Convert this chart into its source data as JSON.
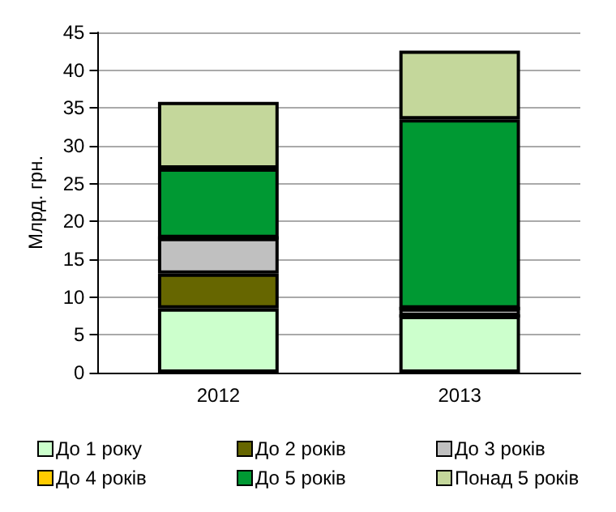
{
  "chart_data": {
    "type": "bar",
    "stacked": true,
    "ylabel": "Млрд. грн.",
    "categories": [
      "2012",
      "2013"
    ],
    "series": [
      {
        "name": "До 1 року",
        "color": "#ccffcc",
        "values": [
          8.5,
          7.5
        ]
      },
      {
        "name": "До 2 років",
        "color": "#666600",
        "values": [
          4.6,
          0
        ]
      },
      {
        "name": "До 3 років",
        "color": "#c0c0c0",
        "values": [
          4.7,
          1.0
        ]
      },
      {
        "name": "До 4 років",
        "color": "#ffcc00",
        "values": [
          0,
          0
        ]
      },
      {
        "name": "До 5 років",
        "color": "#009933",
        "values": [
          9.2,
          25.0
        ]
      },
      {
        "name": "Понад 5 років",
        "color": "#c4d79b",
        "values": [
          8.8,
          9.1
        ]
      }
    ],
    "ylim": [
      0,
      45
    ],
    "yticks": [
      0,
      5,
      10,
      15,
      20,
      25,
      30,
      35,
      40,
      45
    ],
    "grid": "y",
    "legend": "bottom"
  }
}
